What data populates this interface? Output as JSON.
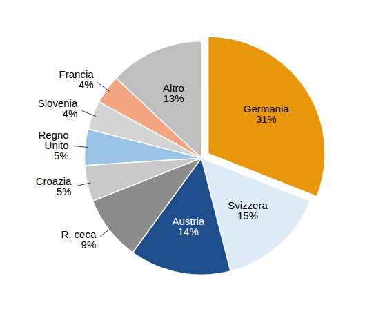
{
  "chart_data": {
    "type": "pie",
    "categories": [
      "Germania",
      "Svizzera",
      "Austria",
      "R. ceca",
      "Croazia",
      "Regno Unito",
      "Slovenia",
      "Francia",
      "Altro"
    ],
    "values": [
      31,
      15,
      14,
      9,
      5,
      5,
      4,
      4,
      13
    ],
    "value_labels": [
      "31%",
      "15%",
      "14%",
      "9%",
      "5%",
      "5%",
      "4%",
      "4%",
      "13%"
    ],
    "colors": [
      "#e8960c",
      "#ddebf7",
      "#1f4e8c",
      "#8c8c8c",
      "#c9c9c9",
      "#9dc3e6",
      "#d4d4d4",
      "#f4a582",
      "#bfbfbf"
    ],
    "data_labels": true
  }
}
